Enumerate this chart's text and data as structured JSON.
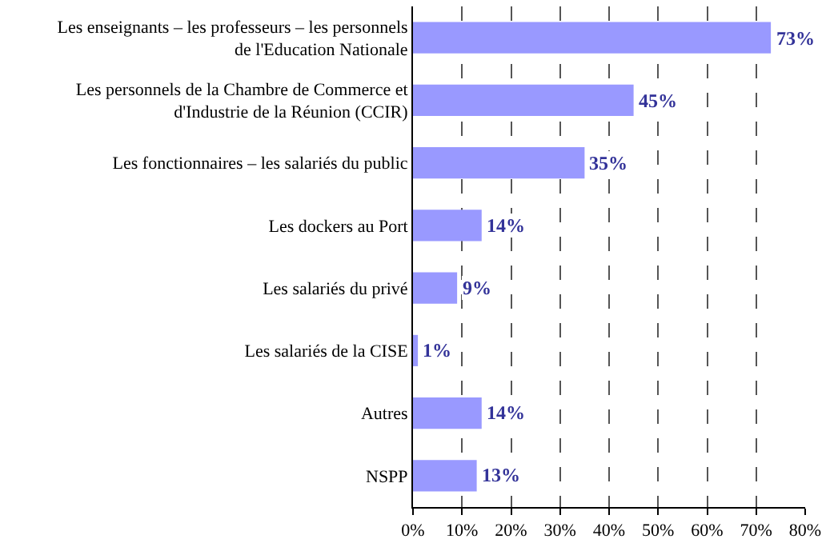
{
  "chart_data": {
    "type": "bar",
    "orientation": "horizontal",
    "categories": [
      "Les enseignants – les professeurs – les personnels de l'Education Nationale",
      "Les personnels de la Chambre de Commerce et d'Industrie de la Réunion (CCIR)",
      "Les fonctionnaires – les salariés du public",
      "Les dockers au Port",
      "Les salariés du privé",
      "Les salariés de la CISE",
      "Autres",
      "NSPP"
    ],
    "values": [
      73,
      45,
      35,
      14,
      9,
      1,
      14,
      13
    ],
    "value_labels": [
      "73%",
      "45%",
      "35%",
      "14%",
      "9%",
      "1%",
      "14%",
      "13%"
    ],
    "color": "#9999ff",
    "xlim": [
      0,
      80
    ],
    "xticks": [
      {
        "value": 0,
        "label": "0%"
      },
      {
        "value": 10,
        "label": "10%"
      },
      {
        "value": 20,
        "label": "20%"
      },
      {
        "value": 30,
        "label": "30%"
      },
      {
        "value": 40,
        "label": "40%"
      },
      {
        "value": 50,
        "label": "50%"
      },
      {
        "value": 60,
        "label": "60%"
      },
      {
        "value": 70,
        "label": "70%"
      },
      {
        "value": 80,
        "label": "80%"
      }
    ],
    "grid": "x",
    "legend": false
  }
}
